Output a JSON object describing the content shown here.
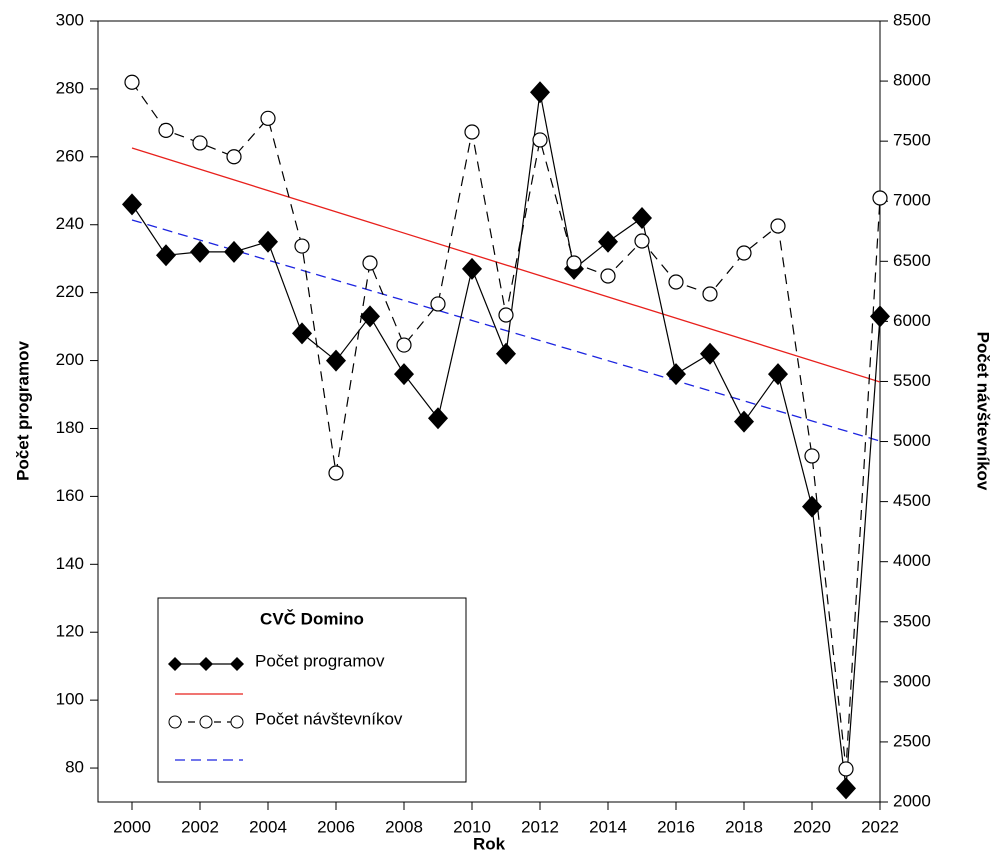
{
  "chart_data": {
    "type": "line",
    "x_label": "Rok",
    "y_label": "Počet programov",
    "y2_label": "Počet návštevníkov",
    "legend_title": "CVČ Domino",
    "x": [
      2000,
      2001,
      2002,
      2003,
      2004,
      2005,
      2006,
      2007,
      2008,
      2009,
      2010,
      2011,
      2012,
      2013,
      2014,
      2015,
      2016,
      2017,
      2018,
      2019,
      2020,
      2021,
      2022
    ],
    "series": [
      {
        "name": "Počet programov",
        "color": "#000000",
        "marker": "diamond",
        "dashed": false,
        "values": [
          246,
          231,
          232,
          232,
          235,
          208,
          200,
          213,
          196,
          183,
          227,
          202,
          279,
          227,
          235,
          242,
          196,
          202,
          182,
          196,
          157,
          74,
          213
        ]
      },
      {
        "name": "Počet návštevníkov",
        "color": "#000000",
        "marker": "circle",
        "dashed": true,
        "axis": "y2",
        "values": [
          7990,
          7590,
          7485,
          7370,
          7690,
          6627,
          4738,
          6486,
          5803,
          6145,
          7576,
          6053,
          7510,
          6486,
          6378,
          6669,
          6328,
          6228,
          6569,
          6794,
          4880,
          2275,
          7027
        ]
      }
    ],
    "trend": [
      {
        "color": "#e8201c",
        "dashed": false,
        "x": [
          2000,
          2022
        ],
        "values": [
          262.6,
          193.7
        ]
      },
      {
        "color": "#1c24e0",
        "dashed": true,
        "axis": "y2",
        "x": [
          2000,
          2022
        ],
        "values": [
          6844,
          5004
        ]
      }
    ],
    "xlim": [
      1999,
      2022
    ],
    "xticks": [
      2000,
      2002,
      2004,
      2006,
      2008,
      2010,
      2012,
      2014,
      2016,
      2018,
      2020,
      2022
    ],
    "ylim": [
      70,
      300
    ],
    "yticks": [
      80,
      100,
      120,
      140,
      160,
      180,
      200,
      220,
      240,
      260,
      280,
      300
    ],
    "y2lim": [
      2000,
      8500
    ],
    "y2ticks": [
      2000,
      2500,
      3000,
      3500,
      4000,
      4500,
      5000,
      5500,
      6000,
      6500,
      7000,
      7500,
      8000,
      8500
    ],
    "legend": "lower left"
  }
}
